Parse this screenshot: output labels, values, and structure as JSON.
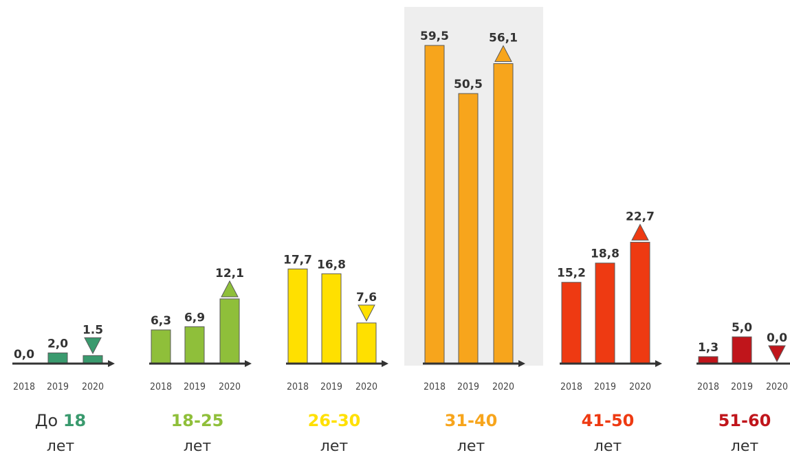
{
  "chart_data": {
    "type": "bar",
    "categories": [
      "2018",
      "2019",
      "2020"
    ],
    "groups": [
      {
        "label_prefix": "До ",
        "label_range": "18",
        "label_unit": "лет",
        "color": "#3a9a6e",
        "values": [
          0.0,
          2.0,
          1.5
        ],
        "value_labels": [
          "0,0",
          "2,0",
          "1.5"
        ],
        "trend": "down"
      },
      {
        "label_prefix": "",
        "label_range": "18-25",
        "label_unit": "лет",
        "color": "#8fbf3a",
        "values": [
          6.3,
          6.9,
          12.1
        ],
        "value_labels": [
          "6,3",
          "6,9",
          "12,1"
        ],
        "trend": "up"
      },
      {
        "label_prefix": "",
        "label_range": "26-30",
        "label_unit": "лет",
        "color": "#ffe000",
        "values": [
          17.7,
          16.8,
          7.6
        ],
        "value_labels": [
          "17,7",
          "16,8",
          "7,6"
        ],
        "trend": "down"
      },
      {
        "label_prefix": "",
        "label_range": "31-40",
        "label_unit": "лет",
        "color": "#f7a51c",
        "values": [
          59.5,
          50.5,
          56.1
        ],
        "value_labels": [
          "59,5",
          "50,5",
          "56,1"
        ],
        "trend": "up",
        "highlighted": true
      },
      {
        "label_prefix": "",
        "label_range": "41-50",
        "label_unit": "лет",
        "color": "#ee3a12",
        "values": [
          15.2,
          18.8,
          22.7
        ],
        "value_labels": [
          "15,2",
          "18,8",
          "22,7"
        ],
        "trend": "up"
      },
      {
        "label_prefix": "",
        "label_range": "51-60",
        "label_unit": "лет",
        "color": "#c0151b",
        "values": [
          1.3,
          5.0,
          0.0
        ],
        "value_labels": [
          "1,3",
          "5,0",
          "0,0"
        ],
        "trend": "down"
      }
    ],
    "highlight_color": "#eeeeee",
    "axis_color": "#333333",
    "ylim": [
      0,
      59.5
    ],
    "grid": false,
    "legend": "none"
  }
}
